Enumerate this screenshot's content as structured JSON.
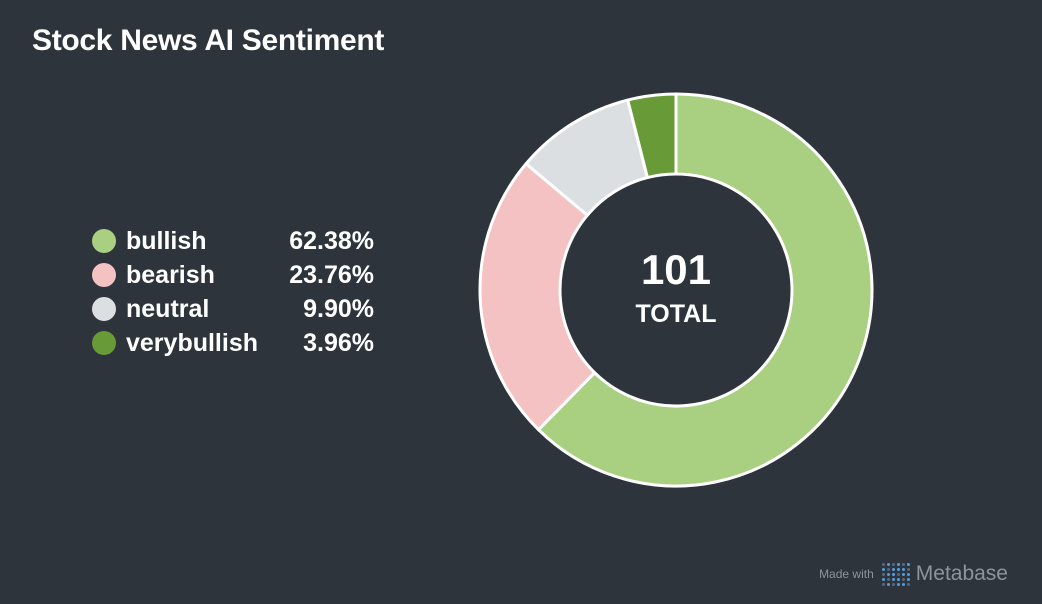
{
  "title": "Stock News AI Sentiment",
  "chart_data": {
    "type": "pie",
    "title": "Stock News AI Sentiment",
    "categories": [
      "bullish",
      "bearish",
      "neutral",
      "verybullish"
    ],
    "values": [
      63,
      24,
      10,
      4
    ],
    "percent_labels": [
      "62.38%",
      "23.76%",
      "9.90%",
      "3.96%"
    ],
    "colors": [
      "#a8d080",
      "#f4c2c2",
      "#dcdfe2",
      "#689a38"
    ],
    "center_value": "101",
    "center_label": "TOTAL",
    "legend_position": "left"
  },
  "footer": {
    "made_with": "Made with",
    "brand": "Metabase"
  }
}
